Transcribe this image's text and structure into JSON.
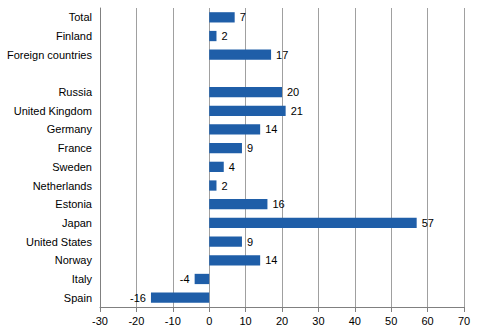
{
  "chart_data": {
    "type": "bar",
    "orientation": "horizontal",
    "categories": [
      "Total",
      "Finland",
      "Foreign countries",
      null,
      "Russia",
      "United Kingdom",
      "Germany",
      "France",
      "Sweden",
      "Netherlands",
      "Estonia",
      "Japan",
      "United States",
      "Norway",
      "Italy",
      "Spain"
    ],
    "values": [
      7,
      2,
      17,
      null,
      20,
      21,
      14,
      9,
      4,
      2,
      16,
      57,
      9,
      14,
      -4,
      -16
    ],
    "color": "#1f5ea8",
    "xlim": [
      -30,
      70
    ],
    "xticks": [
      -30,
      -20,
      -10,
      0,
      10,
      20,
      30,
      40,
      50,
      60,
      70
    ],
    "grid": true,
    "data_labels": true
  }
}
